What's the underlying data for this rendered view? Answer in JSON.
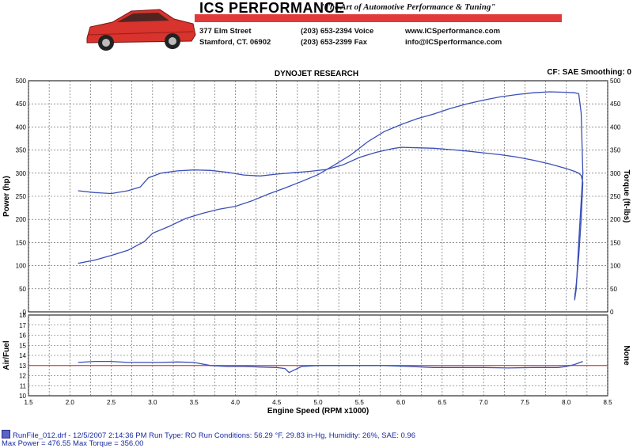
{
  "header": {
    "brand": "ICS PERFORMANCE",
    "tagline": "\"The Art of Automotive Performance & Tuning\"",
    "address_line1": "377 Elm Street",
    "address_line2": "Stamford, CT. 06902",
    "voice": "(203) 653-2394 Voice",
    "fax": "(203) 653-2399 Fax",
    "web": "www.ICSperformance.com",
    "email": "info@ICSperformance.com",
    "brand_color": "#e23a3a"
  },
  "chart_data": [
    {
      "type": "line",
      "title": "DYNOJET RESEARCH",
      "corner_note": "CF: SAE  Smoothing: 0",
      "xlabel": "Engine Speed (RPM x1000)",
      "ylabel": "Power (hp)",
      "ylabel_right": "Torque (ft-lbs)",
      "xlim": [
        1.5,
        8.5
      ],
      "ylim": [
        0,
        500
      ],
      "x_ticks": [
        "1.5",
        "2.0",
        "2.5",
        "3.0",
        "3.5",
        "4.0",
        "4.5",
        "5.0",
        "5.5",
        "6.0",
        "6.5",
        "7.0",
        "7.5",
        "8.0",
        "8.5"
      ],
      "y_ticks": [
        0,
        50,
        100,
        150,
        200,
        250,
        300,
        350,
        400,
        450,
        500
      ],
      "y_ticks_right": [
        0,
        50,
        100,
        150,
        200,
        250,
        300,
        350,
        400,
        450,
        500
      ],
      "grid": true,
      "line_color": "#3b4fb8",
      "series": [
        {
          "values_kind": "power",
          "x": [
            2.1,
            2.3,
            2.5,
            2.7,
            2.9,
            3.0,
            3.2,
            3.4,
            3.6,
            3.8,
            4.0,
            4.2,
            4.4,
            4.6,
            4.8,
            5.0,
            5.2,
            5.4,
            5.6,
            5.8,
            6.0,
            6.2,
            6.4,
            6.6,
            6.8,
            7.0,
            7.2,
            7.4,
            7.6,
            7.8,
            8.0,
            8.1,
            8.15,
            8.18,
            8.2,
            8.15,
            8.12,
            8.1
          ],
          "y": [
            105,
            112,
            122,
            133,
            152,
            170,
            185,
            202,
            213,
            222,
            228,
            240,
            255,
            268,
            282,
            297,
            318,
            340,
            368,
            390,
            405,
            418,
            428,
            440,
            450,
            458,
            465,
            470,
            474,
            476,
            475,
            474,
            472,
            430,
            300,
            150,
            50,
            25
          ]
        },
        {
          "values_kind": "torque",
          "x": [
            2.1,
            2.3,
            2.5,
            2.7,
            2.85,
            2.95,
            3.1,
            3.3,
            3.5,
            3.7,
            3.9,
            4.1,
            4.3,
            4.5,
            4.7,
            4.9,
            5.1,
            5.3,
            5.5,
            5.7,
            5.9,
            6.0,
            6.2,
            6.4,
            6.6,
            6.8,
            7.0,
            7.2,
            7.4,
            7.6,
            7.8,
            8.0,
            8.1,
            8.15,
            8.18,
            8.2,
            8.18,
            8.15,
            8.12,
            8.1
          ],
          "y": [
            262,
            258,
            256,
            262,
            270,
            290,
            300,
            305,
            307,
            306,
            302,
            296,
            294,
            298,
            301,
            304,
            308,
            318,
            334,
            345,
            353,
            356,
            355,
            354,
            351,
            348,
            344,
            340,
            335,
            328,
            320,
            310,
            304,
            300,
            295,
            280,
            200,
            120,
            60,
            30
          ]
        }
      ]
    },
    {
      "type": "line",
      "ylabel": "Air/Fuel",
      "ylabel_right": "None",
      "xlim": [
        1.5,
        8.5
      ],
      "ylim": [
        10,
        18
      ],
      "y_ticks": [
        10,
        11,
        12,
        13,
        14,
        15,
        16,
        17,
        18
      ],
      "grid": true,
      "reference_line": 13.0,
      "reference_color": "#d93a3a",
      "line_color": "#3b4fb8",
      "series": [
        {
          "values_kind": "air_fuel",
          "x": [
            2.1,
            2.3,
            2.5,
            2.7,
            2.9,
            3.1,
            3.3,
            3.5,
            3.7,
            3.9,
            4.1,
            4.3,
            4.5,
            4.6,
            4.65,
            4.7,
            4.8,
            5.0,
            5.2,
            5.5,
            5.8,
            6.1,
            6.4,
            6.7,
            7.0,
            7.3,
            7.6,
            7.9,
            8.0,
            8.1,
            8.2
          ],
          "y": [
            13.3,
            13.4,
            13.4,
            13.3,
            13.3,
            13.3,
            13.35,
            13.3,
            13.0,
            12.9,
            12.9,
            12.85,
            12.8,
            12.7,
            12.3,
            12.5,
            12.9,
            13.0,
            13.0,
            13.0,
            13.0,
            12.9,
            12.8,
            12.8,
            12.8,
            12.75,
            12.8,
            12.8,
            12.9,
            13.1,
            13.4
          ]
        }
      ]
    }
  ],
  "footer": {
    "run_line": "RunFile_012.drf - 12/5/2007 2:14:36 PM  Run Type: RO  Run Conditions: 56.29 °F, 29.83 in-Hg,  Humidity:  26%, SAE: 0.96",
    "max_line": "Max Power = 476.55  Max Torque = 356.00"
  }
}
